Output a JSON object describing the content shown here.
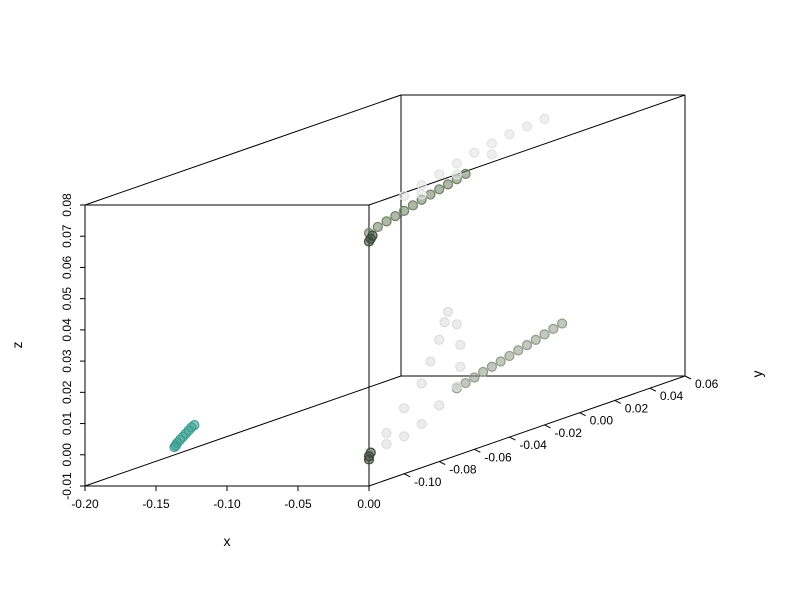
{
  "chart_data": {
    "type": "scatter",
    "projection": "3d",
    "title": "",
    "xlabel": "x",
    "ylabel": "y",
    "zlabel": "z",
    "xlim": [
      -0.2,
      0.0
    ],
    "ylim": [
      -0.12,
      0.06
    ],
    "zlim": [
      -0.01,
      0.08
    ],
    "x_ticks": [
      "-0.20",
      "-0.15",
      "-0.10",
      "-0.05",
      "0.00"
    ],
    "y_ticks": [
      "-0.10",
      "-0.08",
      "-0.06",
      "-0.04",
      "-0.02",
      "0.00",
      "0.02",
      "0.04",
      "0.06"
    ],
    "z_ticks": [
      "-0.01",
      "0.00",
      "0.01",
      "0.02",
      "0.03",
      "0.04",
      "0.05",
      "0.06",
      "0.07",
      "0.08"
    ],
    "grid": false,
    "series": [
      {
        "color": "#3a9e8f",
        "points": [
          [
            -0.137,
            -0.12,
            0.0025
          ],
          [
            -0.136,
            -0.12,
            0.003
          ],
          [
            -0.135,
            -0.12,
            0.0038
          ],
          [
            -0.133,
            -0.12,
            0.0048
          ],
          [
            -0.131,
            -0.12,
            0.0058
          ],
          [
            -0.129,
            -0.12,
            0.0068
          ],
          [
            -0.127,
            -0.12,
            0.0078
          ],
          [
            -0.125,
            -0.12,
            0.0088
          ],
          [
            -0.123,
            -0.12,
            0.0095
          ]
        ]
      },
      {
        "color": "#6f7f63",
        "points": [
          [
            0.0,
            -0.12,
            0.071
          ],
          [
            0.0,
            -0.115,
            0.072
          ],
          [
            0.0,
            -0.11,
            0.0728
          ],
          [
            0.0,
            -0.105,
            0.0735
          ],
          [
            0.0,
            -0.1,
            0.0742
          ],
          [
            0.0,
            -0.095,
            0.075
          ],
          [
            0.0,
            -0.09,
            0.0758
          ],
          [
            0.0,
            -0.085,
            0.0765
          ],
          [
            0.0,
            -0.08,
            0.0772
          ],
          [
            0.0,
            -0.075,
            0.0778
          ],
          [
            0.0,
            -0.07,
            0.0785
          ],
          [
            0.0,
            -0.065,
            0.0792
          ]
        ]
      },
      {
        "color": "#e2e2e2",
        "points": [
          [
            0.0,
            -0.1,
            0.079
          ],
          [
            0.0,
            -0.09,
            0.0805
          ],
          [
            0.0,
            -0.08,
            0.082
          ],
          [
            0.0,
            -0.07,
            0.0835
          ],
          [
            0.0,
            -0.06,
            0.085
          ],
          [
            0.0,
            -0.05,
            0.086
          ],
          [
            0.0,
            -0.04,
            0.087
          ],
          [
            0.0,
            -0.03,
            0.0875
          ],
          [
            0.0,
            -0.02,
            0.088
          ],
          [
            0.0,
            -0.09,
            0.0775
          ],
          [
            0.0,
            -0.07,
            0.08
          ],
          [
            0.0,
            -0.05,
            0.0825
          ]
        ]
      },
      {
        "color": "#8f9a88",
        "points": [
          [
            0.0,
            -0.07,
            0.0115
          ],
          [
            0.0,
            -0.065,
            0.0122
          ],
          [
            0.0,
            -0.06,
            0.013
          ],
          [
            0.0,
            -0.055,
            0.0138
          ],
          [
            0.0,
            -0.05,
            0.0145
          ],
          [
            0.0,
            -0.045,
            0.0152
          ],
          [
            0.0,
            -0.04,
            0.016
          ],
          [
            0.0,
            -0.035,
            0.0168
          ],
          [
            0.0,
            -0.03,
            0.0175
          ],
          [
            0.0,
            -0.025,
            0.0182
          ],
          [
            0.0,
            -0.02,
            0.019
          ],
          [
            0.0,
            -0.015,
            0.0198
          ],
          [
            0.0,
            -0.01,
            0.0205
          ]
        ]
      },
      {
        "color": "#dcdcdc",
        "points": [
          [
            0.0,
            -0.12,
            0.0
          ],
          [
            0.0,
            -0.11,
            0.005
          ],
          [
            0.0,
            -0.1,
            0.011
          ],
          [
            0.0,
            -0.09,
            0.017
          ],
          [
            0.0,
            -0.085,
            0.023
          ],
          [
            0.0,
            -0.08,
            0.029
          ],
          [
            0.0,
            -0.077,
            0.034
          ],
          [
            0.0,
            -0.075,
            0.037
          ],
          [
            0.0,
            -0.07,
            0.032
          ],
          [
            0.0,
            -0.068,
            0.025
          ],
          [
            0.0,
            -0.068,
            0.018
          ],
          [
            0.0,
            -0.07,
            0.012
          ],
          [
            0.0,
            -0.08,
            0.008
          ],
          [
            0.0,
            -0.09,
            0.004
          ],
          [
            0.0,
            -0.1,
            0.002
          ],
          [
            0.0,
            -0.11,
            0.0015
          ]
        ]
      },
      {
        "color": "#3d4a3a",
        "points": [
          [
            0.0,
            -0.12,
            -0.0015
          ],
          [
            0.0,
            -0.12,
            -0.0005
          ],
          [
            0.0,
            -0.119,
            0.0005
          ],
          [
            0.0,
            -0.12,
            0.0683
          ],
          [
            0.0,
            -0.119,
            0.069
          ],
          [
            0.0,
            -0.118,
            0.0698
          ]
        ]
      }
    ]
  }
}
